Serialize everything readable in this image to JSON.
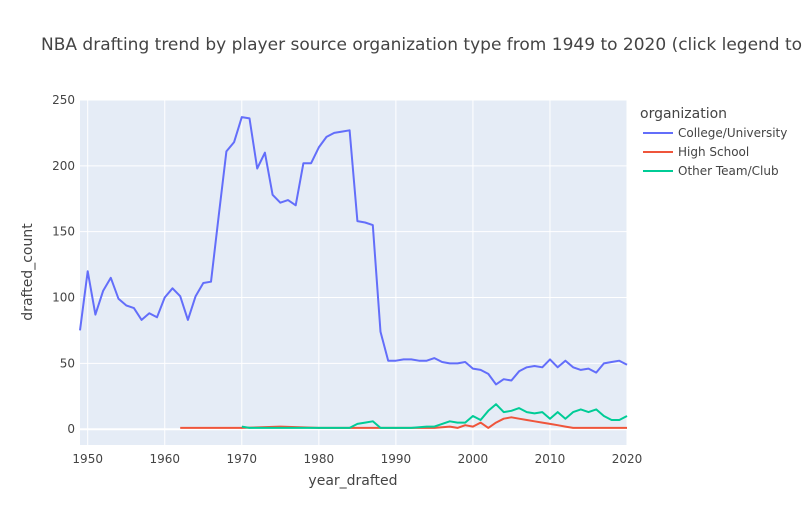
{
  "chart_data": {
    "type": "line",
    "title": "NBA drafting trend by player source organization type from 1949 to 2020 (click legend to",
    "xlabel": "year_drafted",
    "ylabel": "drafted_count",
    "xlim": [
      1949,
      2020
    ],
    "ylim": [
      -12,
      250
    ],
    "xticks": [
      1950,
      1960,
      1970,
      1980,
      1990,
      2000,
      2010,
      2020
    ],
    "yticks": [
      0,
      50,
      100,
      150,
      200,
      250
    ],
    "grid": true,
    "legend_title": "organization",
    "legend_position": "top-right",
    "series": [
      {
        "name": "College/University",
        "color": "#636efa",
        "x": [
          1949,
          1950,
          1951,
          1952,
          1953,
          1954,
          1955,
          1956,
          1957,
          1958,
          1959,
          1960,
          1961,
          1962,
          1963,
          1964,
          1965,
          1966,
          1967,
          1968,
          1969,
          1970,
          1971,
          1972,
          1973,
          1974,
          1975,
          1976,
          1977,
          1978,
          1979,
          1980,
          1981,
          1982,
          1983,
          1984,
          1985,
          1986,
          1987,
          1988,
          1989,
          1990,
          1991,
          1992,
          1993,
          1994,
          1995,
          1996,
          1997,
          1998,
          1999,
          2000,
          2001,
          2002,
          2003,
          2004,
          2005,
          2006,
          2007,
          2008,
          2009,
          2010,
          2011,
          2012,
          2013,
          2014,
          2015,
          2016,
          2017,
          2018,
          2019,
          2020
        ],
        "y": [
          75,
          120,
          87,
          105,
          115,
          99,
          94,
          92,
          83,
          88,
          85,
          100,
          107,
          101,
          83,
          101,
          111,
          112,
          162,
          211,
          218,
          237,
          236,
          198,
          210,
          178,
          172,
          174,
          170,
          202,
          202,
          214,
          222,
          225,
          226,
          227,
          158,
          157,
          155,
          74,
          52,
          52,
          53,
          53,
          52,
          52,
          54,
          51,
          50,
          50,
          51,
          46,
          45,
          42,
          34,
          38,
          37,
          44,
          47,
          48,
          47,
          53,
          47,
          52,
          47,
          45,
          46,
          43,
          50,
          51,
          52,
          49
        ]
      },
      {
        "name": "High School",
        "color": "#ef553b",
        "x": [
          1962,
          1970,
          1975,
          1980,
          1985,
          1990,
          1995,
          1997,
          1998,
          1999,
          2000,
          2001,
          2002,
          2003,
          2004,
          2005,
          2006,
          2007,
          2008,
          2009,
          2010,
          2011,
          2012,
          2013,
          2014,
          2015,
          2016,
          2017,
          2018,
          2019,
          2020
        ],
        "y": [
          1,
          1,
          2,
          1,
          1,
          1,
          1,
          2,
          1,
          3,
          2,
          5,
          1,
          5,
          8,
          9,
          8,
          7,
          6,
          5,
          4,
          3,
          2,
          1,
          1,
          1,
          1,
          1,
          1,
          1,
          1
        ]
      },
      {
        "name": "Other Team/Club",
        "color": "#00cc96",
        "x": [
          1970,
          1971,
          1975,
          1980,
          1984,
          1985,
          1986,
          1987,
          1988,
          1990,
          1992,
          1994,
          1995,
          1996,
          1997,
          1998,
          1999,
          2000,
          2001,
          2002,
          2003,
          2004,
          2005,
          2006,
          2007,
          2008,
          2009,
          2010,
          2011,
          2012,
          2013,
          2014,
          2015,
          2016,
          2017,
          2018,
          2019,
          2020
        ],
        "y": [
          2,
          1,
          1,
          1,
          1,
          4,
          5,
          6,
          1,
          1,
          1,
          2,
          2,
          4,
          6,
          5,
          5,
          10,
          7,
          14,
          19,
          13,
          14,
          16,
          13,
          12,
          13,
          8,
          13,
          8,
          13,
          15,
          13,
          15,
          10,
          7,
          7,
          10
        ]
      }
    ]
  }
}
